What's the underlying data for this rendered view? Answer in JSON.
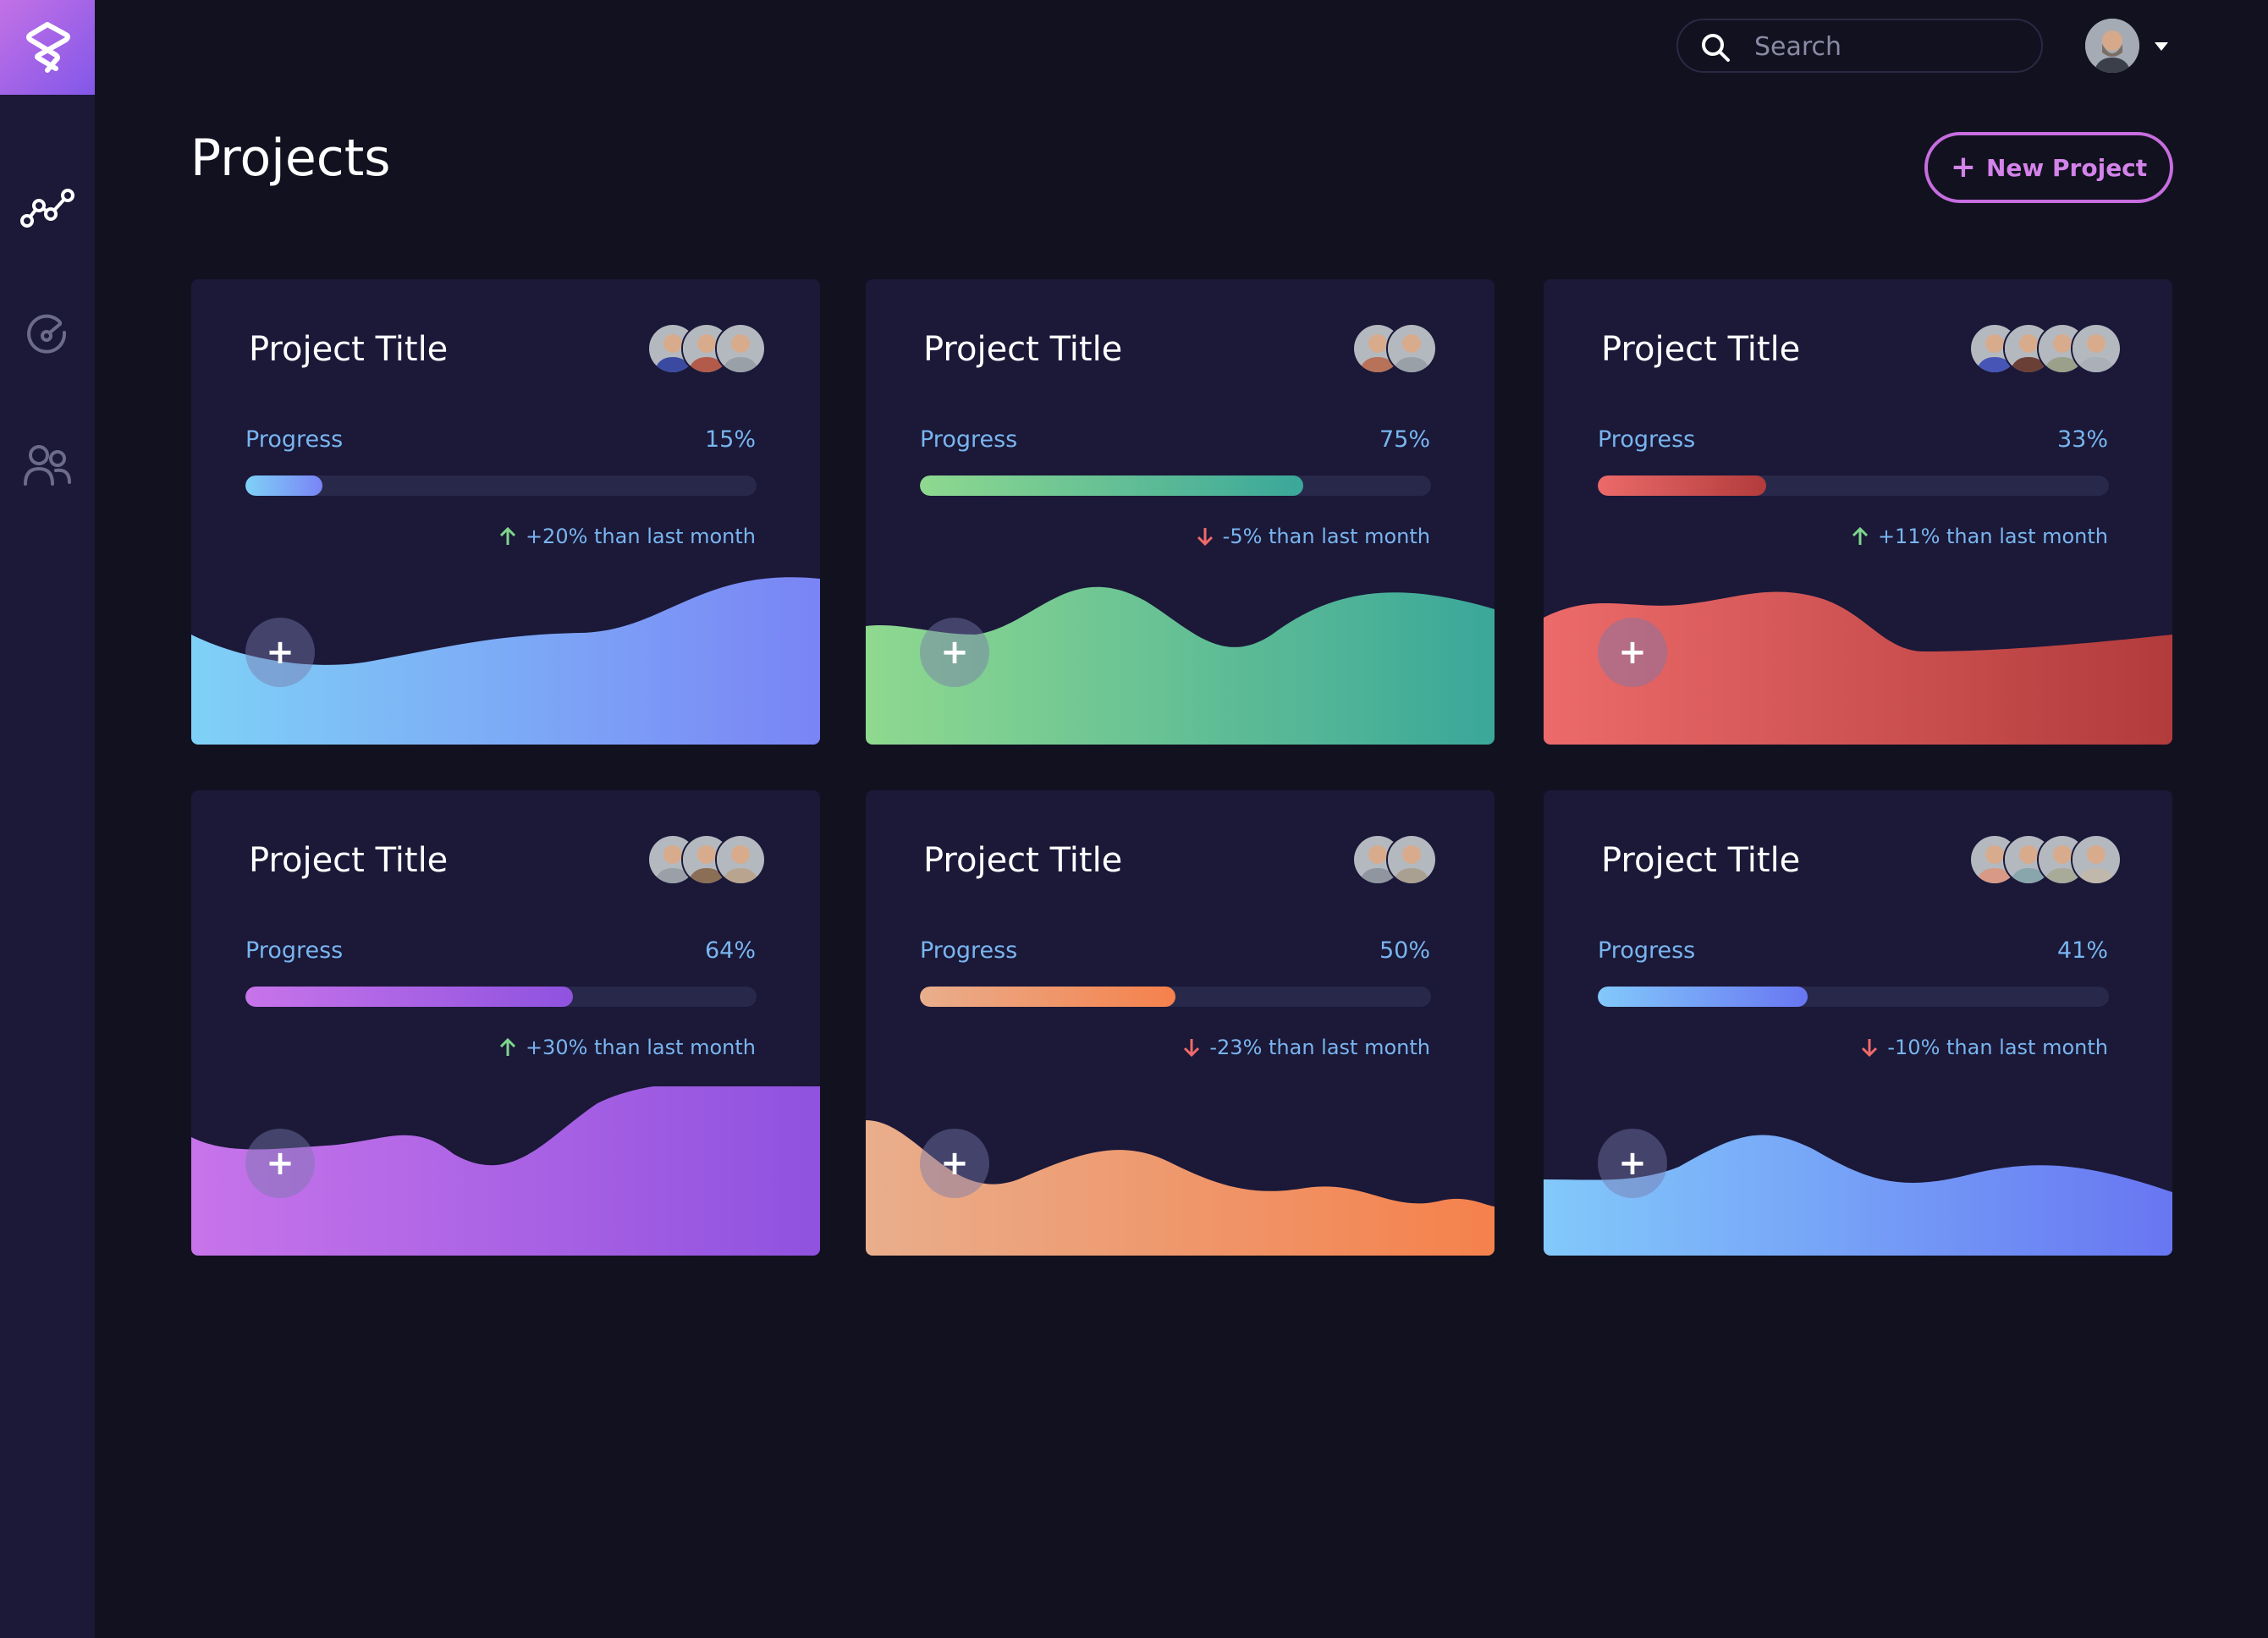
{
  "header": {
    "title": "Projects",
    "new_project_label": "New Project",
    "search_placeholder": "Search"
  },
  "sidebar": {
    "items": [
      {
        "name": "analytics",
        "icon": "chart-line-icon",
        "active": true
      },
      {
        "name": "dashboard",
        "icon": "gauge-icon",
        "active": false
      },
      {
        "name": "team",
        "icon": "users-icon",
        "active": false
      }
    ]
  },
  "projects": [
    {
      "title": "Project Title",
      "progress_label": "Progress",
      "progress_value": "15%",
      "progress": 15,
      "trend": "+20% than last month",
      "trend_dir": "up",
      "members": 3,
      "colors": [
        "#7fd1f7",
        "#7a84f5"
      ]
    },
    {
      "title": "Project Title",
      "progress_label": "Progress",
      "progress_value": "75%",
      "progress": 75,
      "trend": "-5% than last month",
      "trend_dir": "down",
      "members": 2,
      "colors": [
        "#8fd98f",
        "#3aa79a"
      ]
    },
    {
      "title": "Project Title",
      "progress_label": "Progress",
      "progress_value": "33%",
      "progress": 33,
      "trend": "+11% than last month",
      "trend_dir": "up",
      "members": 4,
      "colors": [
        "#ec6a6a",
        "#b23b3b"
      ]
    },
    {
      "title": "Project Title",
      "progress_label": "Progress",
      "progress_value": "64%",
      "progress": 64,
      "trend": "+30% than last month",
      "trend_dir": "up",
      "members": 3,
      "colors": [
        "#c774ea",
        "#8f52df"
      ]
    },
    {
      "title": "Project Title",
      "progress_label": "Progress",
      "progress_value": "50%",
      "progress": 50,
      "trend": "-23% than last month",
      "trend_dir": "down",
      "members": 2,
      "colors": [
        "#e9ae8c",
        "#f5814c"
      ]
    },
    {
      "title": "Project Title",
      "progress_label": "Progress",
      "progress_value": "41%",
      "progress": 41,
      "trend": "-10% than last month",
      "trend_dir": "down",
      "members": 4,
      "colors": [
        "#82c9fb",
        "#6876f2"
      ]
    }
  ],
  "colors": {
    "background": "#12111f",
    "card": "#1b1838",
    "accent": "#c66ddf",
    "label": "#79b5ef",
    "trend_up": "#7ed68b",
    "trend_down": "#ef6a6a"
  }
}
